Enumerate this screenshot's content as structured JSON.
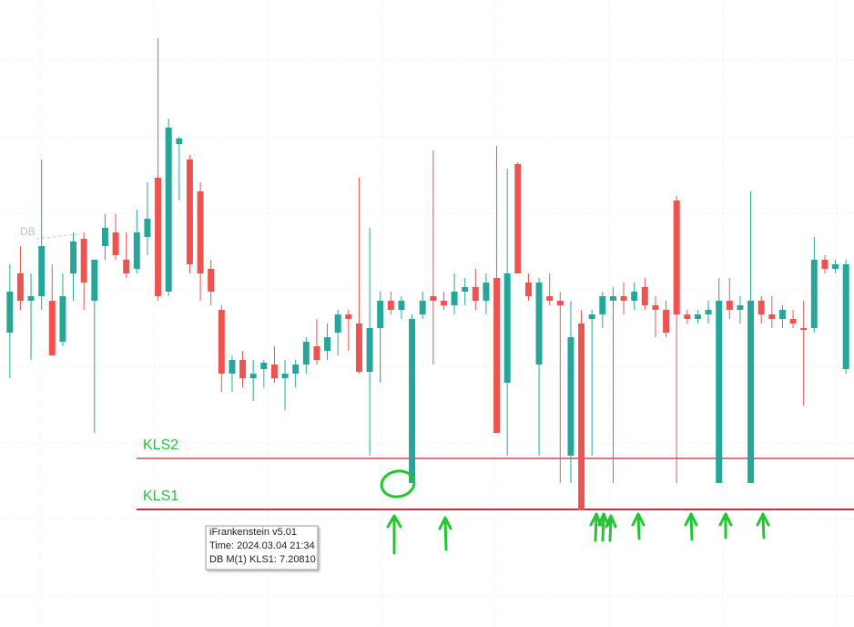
{
  "chart_data": {
    "type": "candlestick",
    "ylim": [
      7.1952,
      7.264
    ],
    "up_color": "#26a69a",
    "down_color": "#ef5350",
    "open": [
      7.2275,
      7.234,
      7.231,
      7.2315,
      7.231,
      7.2265,
      7.234,
      7.2378,
      7.231,
      7.237,
      7.2385,
      7.2355,
      7.2345,
      7.238,
      7.2445,
      7.232,
      7.2482,
      7.2465,
      7.243,
      7.2345,
      7.23,
      7.223,
      7.2245,
      7.2225,
      7.2235,
      7.224,
      7.2225,
      7.223,
      7.224,
      7.226,
      7.2255,
      7.2275,
      7.2295,
      7.2285,
      7.2232,
      7.228,
      7.231,
      7.23,
      7.211,
      7.2295,
      7.2315,
      7.231,
      7.2305,
      7.232,
      7.2325,
      7.231,
      7.2335,
      7.222,
      7.246,
      7.233,
      7.224,
      7.2315,
      7.231,
      7.214,
      7.2285,
      7.229,
      7.2295,
      7.231,
      7.2315,
      7.231,
      7.2325,
      7.2305,
      7.23,
      7.242,
      7.2295,
      7.229,
      7.2295,
      7.211,
      7.231,
      7.23,
      7.211,
      7.231,
      7.2295,
      7.229,
      7.229,
      7.228,
      7.228,
      7.2355,
      7.2345,
      7.2235
    ],
    "high": [
      7.235,
      7.237,
      7.234,
      7.2465,
      7.235,
      7.234,
      7.2385,
      7.2385,
      7.2355,
      7.2405,
      7.2405,
      7.2385,
      7.241,
      7.244,
      7.2598,
      7.251,
      7.249,
      7.247,
      7.244,
      7.2355,
      7.2305,
      7.225,
      7.2255,
      7.2245,
      7.2245,
      7.226,
      7.2245,
      7.2245,
      7.227,
      7.229,
      7.2285,
      7.23,
      7.23,
      7.2445,
      7.239,
      7.232,
      7.232,
      7.2315,
      7.2295,
      7.232,
      7.2475,
      7.232,
      7.234,
      7.2335,
      7.2345,
      7.234,
      7.248,
      7.2455,
      7.2462,
      7.234,
      7.2335,
      7.234,
      7.232,
      7.231,
      7.23,
      7.23,
      7.232,
      7.2325,
      7.233,
      7.233,
      7.2335,
      7.2315,
      7.231,
      7.2425,
      7.23,
      7.23,
      7.231,
      7.2335,
      7.2335,
      7.2315,
      7.243,
      7.2315,
      7.2315,
      7.2305,
      7.23,
      7.231,
      7.238,
      7.236,
      7.2355,
      7.2355
    ],
    "low": [
      7.2225,
      7.23,
      7.2245,
      7.23,
      7.225,
      7.226,
      7.231,
      7.23,
      7.2165,
      7.2355,
      7.2355,
      7.2335,
      7.234,
      7.236,
      7.231,
      7.2315,
      7.242,
      7.234,
      7.231,
      7.2305,
      7.221,
      7.221,
      7.2215,
      7.22,
      7.2215,
      7.222,
      7.219,
      7.2215,
      7.223,
      7.224,
      7.2245,
      7.225,
      7.2255,
      7.223,
      7.214,
      7.222,
      7.2295,
      7.229,
      7.211,
      7.229,
      7.224,
      7.23,
      7.2295,
      7.2305,
      7.23,
      7.2295,
      7.2165,
      7.214,
      7.234,
      7.231,
      7.214,
      7.2305,
      7.211,
      7.211,
      7.208,
      7.214,
      7.228,
      7.211,
      7.2295,
      7.23,
      7.23,
      7.227,
      7.227,
      7.211,
      7.2285,
      7.2285,
      7.2285,
      7.211,
      7.229,
      7.2285,
      7.211,
      7.2285,
      7.228,
      7.228,
      7.228,
      7.2195,
      7.2275,
      7.234,
      7.234,
      7.223
    ],
    "close": [
      7.232,
      7.231,
      7.2315,
      7.237,
      7.225,
      7.2315,
      7.2375,
      7.233,
      7.2355,
      7.239,
      7.236,
      7.234,
      7.2385,
      7.24,
      7.2315,
      7.25,
      7.2488,
      7.235,
      7.234,
      7.232,
      7.223,
      7.2245,
      7.2225,
      7.223,
      7.2242,
      7.2225,
      7.223,
      7.224,
      7.2265,
      7.2245,
      7.227,
      7.2295,
      7.229,
      7.2232,
      7.228,
      7.231,
      7.23,
      7.231,
      7.229,
      7.231,
      7.231,
      7.2305,
      7.232,
      7.2325,
      7.231,
      7.233,
      7.2165,
      7.234,
      7.234,
      7.2315,
      7.233,
      7.231,
      7.2305,
      7.227,
      7.208,
      7.2295,
      7.2315,
      7.2315,
      7.231,
      7.232,
      7.2305,
      7.23,
      7.2275,
      7.2295,
      7.229,
      7.2295,
      7.23,
      7.231,
      7.23,
      7.2305,
      7.231,
      7.2295,
      7.229,
      7.23,
      7.2285,
      7.2278,
      7.2355,
      7.2345,
      7.235,
      7.235
    ],
    "levels": [
      {
        "label": "KLS2",
        "value": 7.2137,
        "color": "#c62828"
      },
      {
        "label": "KLS1",
        "value": 7.2081,
        "color": "#d32f2f"
      }
    ],
    "marker_label": "DB",
    "tooltip": [
      "iFrankenstein v5.01",
      "Time: 2024.03.04 21:34",
      "DB M(1) KLS1: 7.20810"
    ]
  }
}
